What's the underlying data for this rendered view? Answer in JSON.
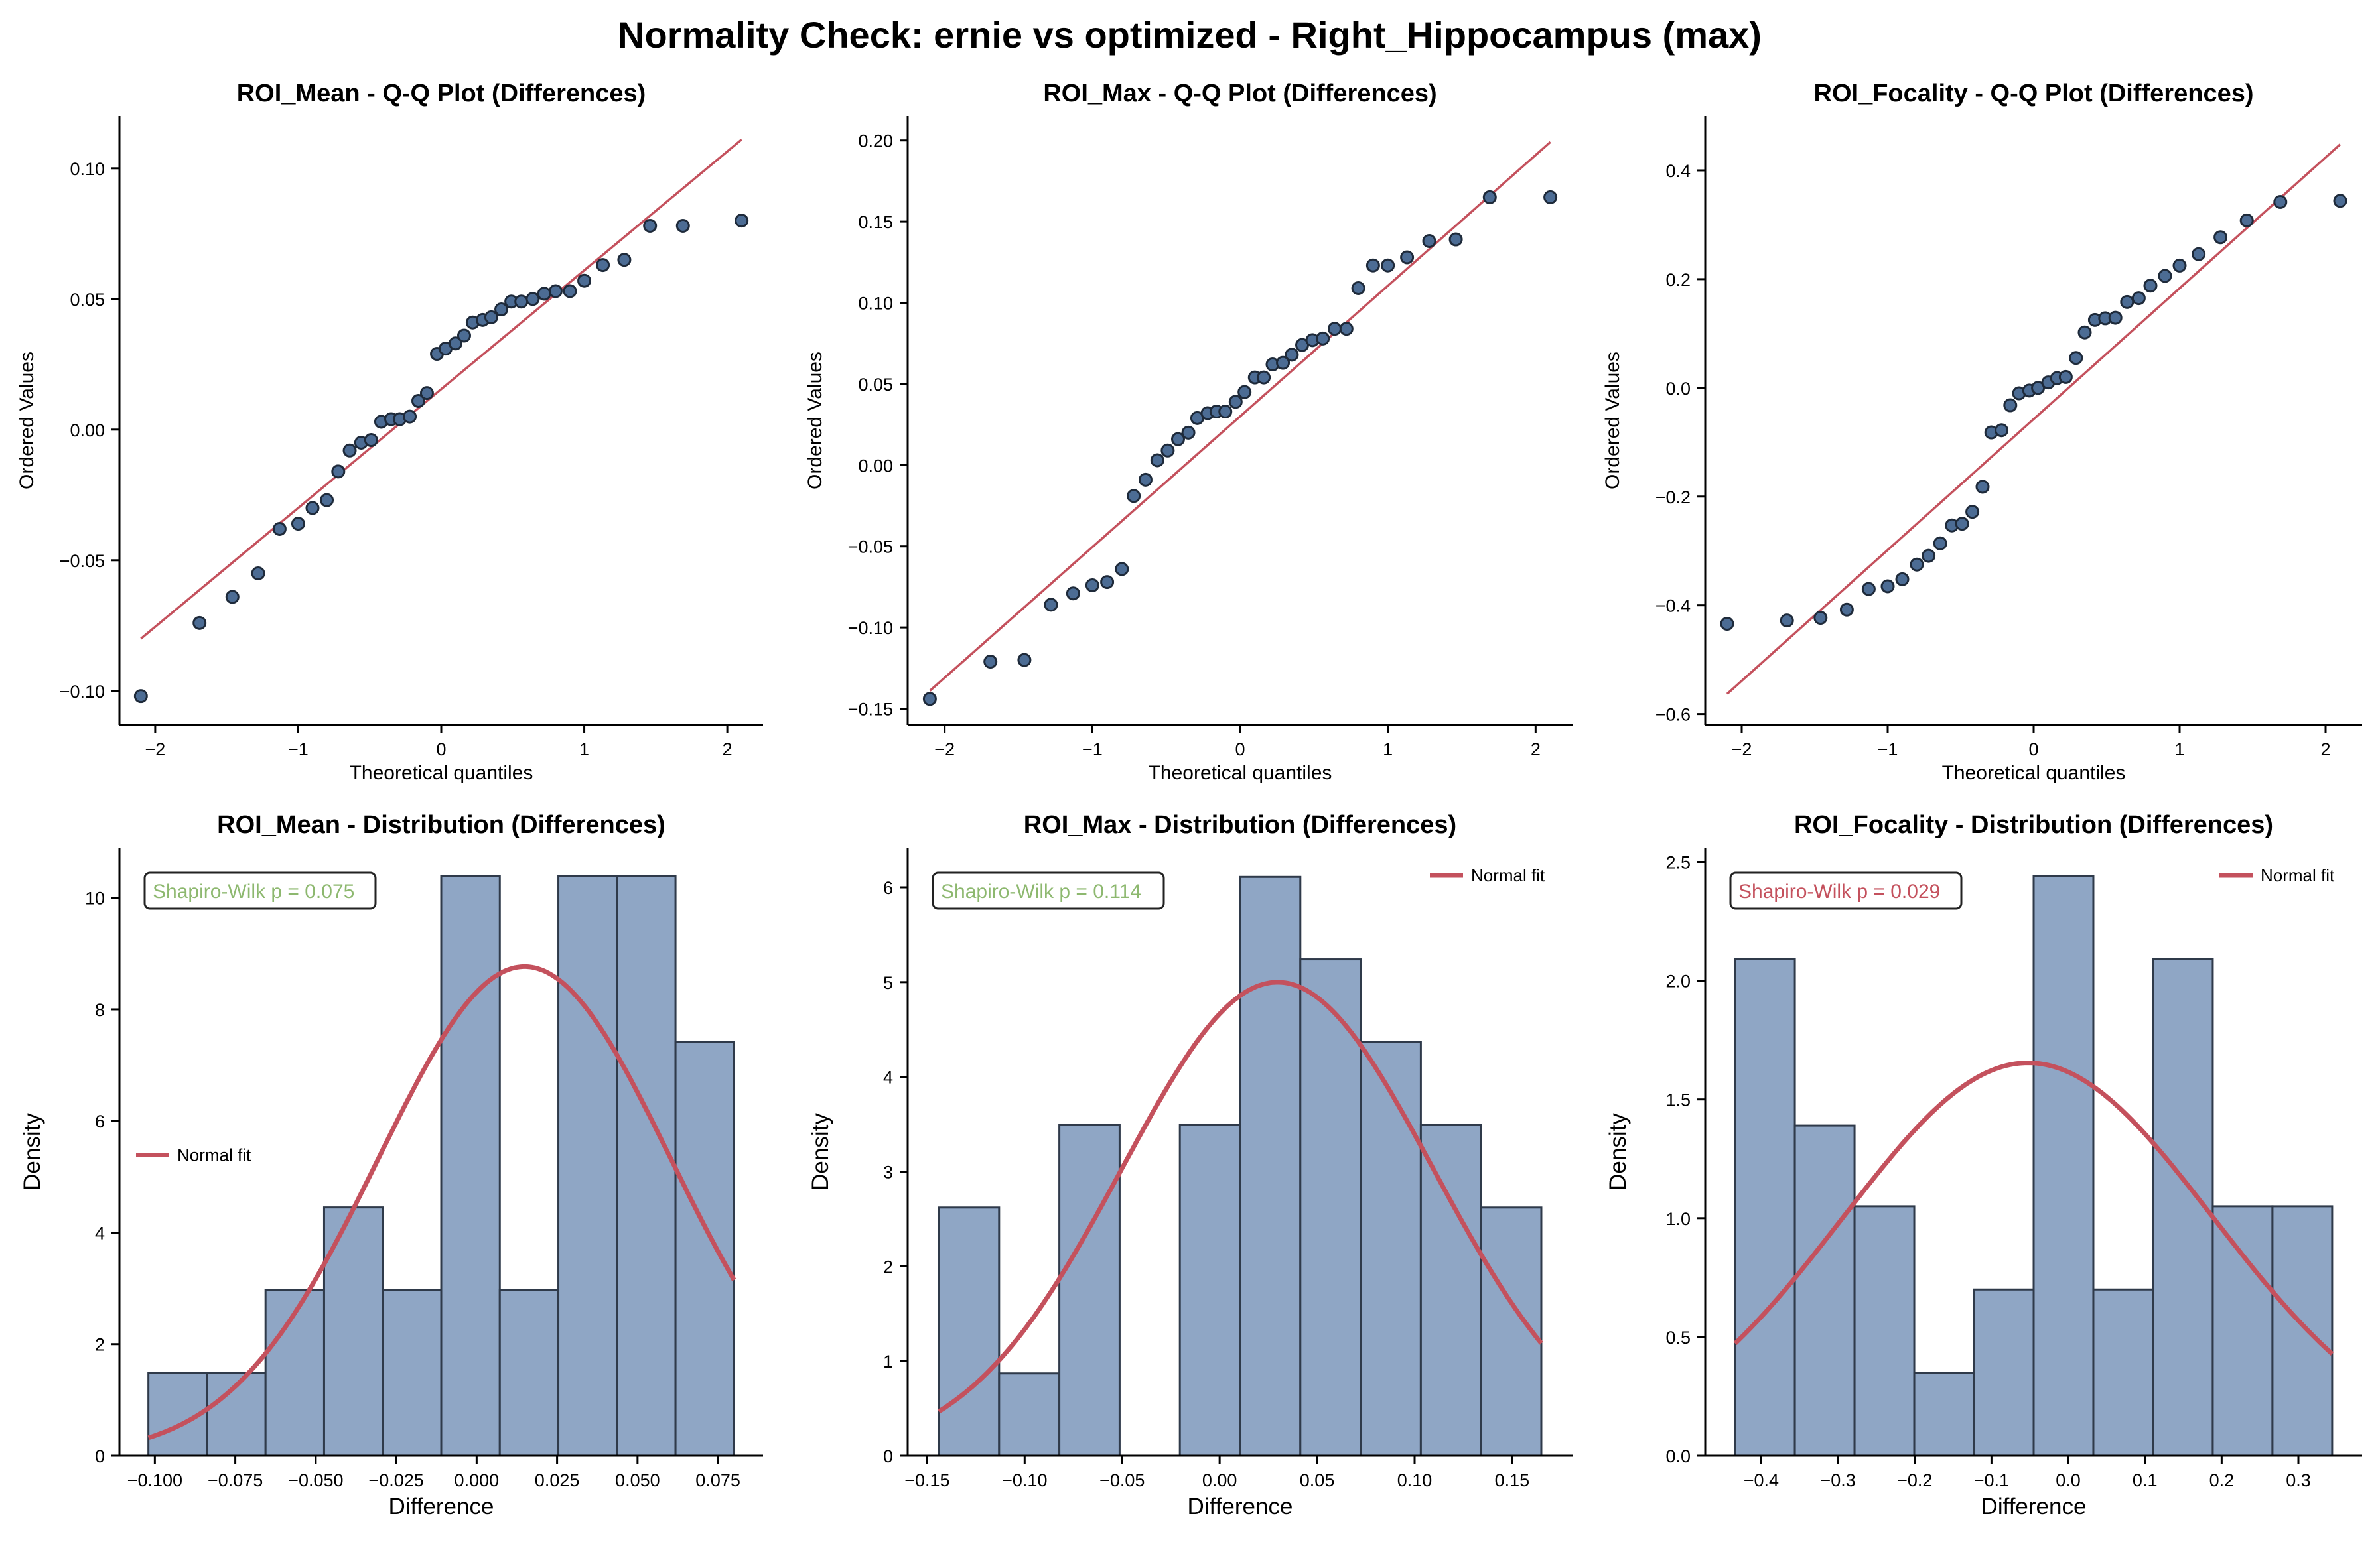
{
  "figure": {
    "suptitle": "Normality Check: ernie vs optimized - Right_Hippocampus (max)",
    "colors": {
      "point_fill": "#4c6c94",
      "point_edge": "#1e2a3a",
      "line": "#c4515d",
      "bar_fill": "#8fa6c5",
      "bar_edge": "#2f3a4a",
      "pvalue_normal": "#8db86f",
      "pvalue_non_normal": "#c4515d"
    }
  },
  "chart_data": [
    {
      "type": "scatter",
      "title": "ROI_Mean - Q-Q Plot (Differences)",
      "xlabel": "Theoretical quantiles",
      "ylabel": "Ordered Values",
      "xlim": [
        -2.25,
        2.25
      ],
      "ylim": [
        -0.113,
        0.12
      ],
      "xticks": [
        -2,
        -1,
        0,
        1,
        2
      ],
      "xtick_labels": [
        "−2",
        "−1",
        "0",
        "1",
        "2"
      ],
      "yticks": [
        -0.1,
        -0.05,
        0.0,
        0.05,
        0.1
      ],
      "ytick_labels": [
        "−0.10",
        "−0.05",
        "0.00",
        "0.05",
        "0.10"
      ],
      "x": [
        -2.1,
        -1.69,
        -1.46,
        -1.28,
        -1.13,
        -1.0,
        -0.9,
        -0.8,
        -0.72,
        -0.64,
        -0.56,
        -0.49,
        -0.42,
        -0.35,
        -0.29,
        -0.22,
        -0.16,
        -0.1,
        -0.03,
        0.03,
        0.1,
        0.16,
        0.22,
        0.29,
        0.35,
        0.42,
        0.49,
        0.56,
        0.64,
        0.72,
        0.8,
        0.9,
        1.0,
        1.13,
        1.28,
        1.46,
        1.69,
        2.1
      ],
      "y": [
        -0.102,
        -0.074,
        -0.064,
        -0.055,
        -0.038,
        -0.036,
        -0.03,
        -0.027,
        -0.016,
        -0.008,
        -0.005,
        -0.004,
        0.003,
        0.004,
        0.004,
        0.005,
        0.011,
        0.014,
        0.029,
        0.031,
        0.033,
        0.036,
        0.041,
        0.042,
        0.043,
        0.046,
        0.049,
        0.049,
        0.05,
        0.052,
        0.053,
        0.053,
        0.057,
        0.063,
        0.065,
        0.078,
        0.078,
        0.08
      ],
      "fit_line": {
        "x": [
          -2.1,
          2.1
        ],
        "y": [
          -0.08,
          0.111
        ]
      }
    },
    {
      "type": "scatter",
      "title": "ROI_Max - Q-Q Plot (Differences)",
      "xlabel": "Theoretical quantiles",
      "ylabel": "Ordered Values",
      "xlim": [
        -2.25,
        2.25
      ],
      "ylim": [
        -0.16,
        0.215
      ],
      "xticks": [
        -2,
        -1,
        0,
        1,
        2
      ],
      "xtick_labels": [
        "−2",
        "−1",
        "0",
        "1",
        "2"
      ],
      "yticks": [
        -0.15,
        -0.1,
        -0.05,
        0.0,
        0.05,
        0.1,
        0.15,
        0.2
      ],
      "ytick_labels": [
        "−0.15",
        "−0.10",
        "−0.05",
        "0.00",
        "0.05",
        "0.10",
        "0.15",
        "0.20"
      ],
      "x": [
        -2.1,
        -1.69,
        -1.46,
        -1.28,
        -1.13,
        -1.0,
        -0.9,
        -0.8,
        -0.72,
        -0.64,
        -0.56,
        -0.49,
        -0.42,
        -0.35,
        -0.29,
        -0.22,
        -0.16,
        -0.1,
        -0.03,
        0.03,
        0.1,
        0.16,
        0.22,
        0.29,
        0.35,
        0.42,
        0.49,
        0.56,
        0.64,
        0.72,
        0.8,
        0.9,
        1.0,
        1.13,
        1.28,
        1.46,
        1.69,
        2.1
      ],
      "y": [
        -0.144,
        -0.121,
        -0.12,
        -0.086,
        -0.079,
        -0.074,
        -0.072,
        -0.064,
        -0.019,
        -0.009,
        0.003,
        0.009,
        0.016,
        0.02,
        0.029,
        0.032,
        0.033,
        0.033,
        0.039,
        0.045,
        0.054,
        0.054,
        0.062,
        0.063,
        0.068,
        0.074,
        0.077,
        0.078,
        0.084,
        0.084,
        0.109,
        0.123,
        0.123,
        0.128,
        0.138,
        0.139,
        0.165,
        0.165
      ],
      "fit_line": {
        "x": [
          -2.1,
          2.1
        ],
        "y": [
          -0.139,
          0.199
        ]
      }
    },
    {
      "type": "scatter",
      "title": "ROI_Focality - Q-Q Plot (Differences)",
      "xlabel": "Theoretical quantiles",
      "ylabel": "Ordered Values",
      "xlim": [
        -2.25,
        2.25
      ],
      "ylim": [
        -0.62,
        0.5
      ],
      "xticks": [
        -2,
        -1,
        0,
        1,
        2
      ],
      "xtick_labels": [
        "−2",
        "−1",
        "0",
        "1",
        "2"
      ],
      "yticks": [
        -0.6,
        -0.4,
        -0.2,
        0.0,
        0.2,
        0.4
      ],
      "ytick_labels": [
        "−0.6",
        "−0.4",
        "−0.2",
        "0.0",
        "0.2",
        "0.4"
      ],
      "x": [
        -2.1,
        -1.69,
        -1.46,
        -1.28,
        -1.13,
        -1.0,
        -0.9,
        -0.8,
        -0.72,
        -0.64,
        -0.56,
        -0.49,
        -0.42,
        -0.35,
        -0.29,
        -0.22,
        -0.16,
        -0.1,
        -0.03,
        0.03,
        0.1,
        0.16,
        0.22,
        0.29,
        0.35,
        0.42,
        0.49,
        0.56,
        0.64,
        0.72,
        0.8,
        0.9,
        1.0,
        1.13,
        1.28,
        1.46,
        1.69,
        2.1
      ],
      "y": [
        -0.434,
        -0.428,
        -0.423,
        -0.408,
        -0.37,
        -0.365,
        -0.352,
        -0.325,
        -0.309,
        -0.286,
        -0.253,
        -0.25,
        -0.228,
        -0.182,
        -0.082,
        -0.078,
        -0.032,
        -0.01,
        -0.005,
        0.0,
        0.01,
        0.018,
        0.02,
        0.055,
        0.102,
        0.125,
        0.128,
        0.129,
        0.158,
        0.165,
        0.188,
        0.206,
        0.225,
        0.246,
        0.277,
        0.308,
        0.342,
        0.344
      ],
      "fit_line": {
        "x": [
          -2.1,
          2.1
        ],
        "y": [
          -0.563,
          0.448
        ]
      }
    },
    {
      "type": "bar",
      "title": "ROI_Mean - Distribution (Differences)",
      "xlabel": "Difference",
      "ylabel": "Density",
      "xlim": [
        -0.111,
        0.089
      ],
      "ylim": [
        0,
        10.9
      ],
      "xticks": [
        -0.1,
        -0.075,
        -0.05,
        -0.025,
        0.0,
        0.025,
        0.05,
        0.075
      ],
      "xtick_labels": [
        "−0.100",
        "−0.075",
        "−0.050",
        "−0.025",
        "0.000",
        "0.025",
        "0.050",
        "0.075"
      ],
      "yticks": [
        0,
        2,
        4,
        6,
        8,
        10
      ],
      "ytick_labels": [
        "0",
        "2",
        "4",
        "6",
        "8",
        "10"
      ],
      "bin_edges": [
        -0.102,
        -0.0838,
        -0.0656,
        -0.0474,
        -0.0292,
        -0.011,
        0.0072,
        0.0254,
        0.0436,
        0.0618,
        0.08
      ],
      "values": [
        1.48,
        1.48,
        2.97,
        4.45,
        2.97,
        10.39,
        2.97,
        10.39,
        10.39,
        7.42
      ],
      "normal_fit": {
        "label": "Normal fit",
        "mean": 0.0149,
        "sd": 0.0455
      },
      "legend_position": "center-left",
      "annotation": {
        "text": "Shapiro-Wilk p = 0.075",
        "status": "normal"
      }
    },
    {
      "type": "bar",
      "title": "ROI_Max - Distribution (Differences)",
      "xlabel": "Difference",
      "ylabel": "Density",
      "xlim": [
        -0.16,
        0.181
      ],
      "ylim": [
        0,
        6.42
      ],
      "xticks": [
        -0.15,
        -0.1,
        -0.05,
        0.0,
        0.05,
        0.1,
        0.15
      ],
      "xtick_labels": [
        "−0.15",
        "−0.10",
        "−0.05",
        "0.00",
        "0.05",
        "0.10",
        "0.15"
      ],
      "yticks": [
        0,
        1,
        2,
        3,
        4,
        5,
        6
      ],
      "ytick_labels": [
        "0",
        "1",
        "2",
        "3",
        "4",
        "5",
        "6"
      ],
      "bin_edges": [
        -0.144,
        -0.1131,
        -0.0822,
        -0.0513,
        -0.0204,
        0.0105,
        0.0414,
        0.0723,
        0.1032,
        0.1341,
        0.165
      ],
      "values": [
        2.62,
        0.87,
        3.49,
        0.0,
        3.49,
        6.11,
        5.24,
        4.37,
        3.49,
        2.62
      ],
      "normal_fit": {
        "label": "Normal fit",
        "mean": 0.0297,
        "sd": 0.0798
      },
      "legend_position": "top-right",
      "annotation": {
        "text": "Shapiro-Wilk p = 0.114",
        "status": "normal"
      }
    },
    {
      "type": "bar",
      "title": "ROI_Focality - Distribution (Differences)",
      "xlabel": "Difference",
      "ylabel": "Density",
      "xlim": [
        -0.473,
        0.383
      ],
      "ylim": [
        0,
        2.56
      ],
      "xticks": [
        -0.4,
        -0.3,
        -0.2,
        -0.1,
        0.0,
        0.1,
        0.2,
        0.3
      ],
      "xtick_labels": [
        "−0.4",
        "−0.3",
        "−0.2",
        "−0.1",
        "0.0",
        "0.1",
        "0.2",
        "0.3"
      ],
      "yticks": [
        0.0,
        0.5,
        1.0,
        1.5,
        2.0,
        2.5
      ],
      "ytick_labels": [
        "0.0",
        "0.5",
        "1.0",
        "1.5",
        "2.0",
        "2.5"
      ],
      "bin_edges": [
        -0.434,
        -0.3562,
        -0.2784,
        -0.2006,
        -0.1228,
        -0.045,
        0.0328,
        0.1106,
        0.1884,
        0.2662,
        0.344
      ],
      "values": [
        2.09,
        1.39,
        1.05,
        0.35,
        0.7,
        2.44,
        0.7,
        2.09,
        1.05,
        1.05
      ],
      "normal_fit": {
        "label": "Normal fit",
        "mean": -0.0523,
        "sd": 0.2412
      },
      "legend_position": "top-right",
      "annotation": {
        "text": "Shapiro-Wilk p = 0.029",
        "status": "non-normal"
      }
    }
  ]
}
